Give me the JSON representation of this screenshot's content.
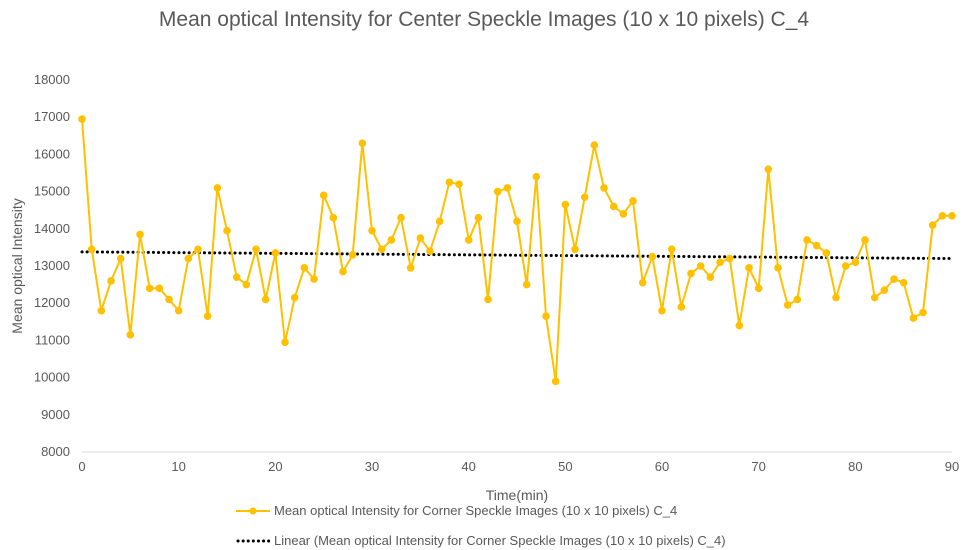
{
  "chart_data": {
    "type": "line",
    "title": "Mean optical Intensity for Center Speckle Images (10 x 10 pixels) C_4",
    "xlabel": "Time(min)",
    "ylabel": "Mean optical Intensity",
    "xlim": [
      0,
      90
    ],
    "ylim": [
      8000,
      18000
    ],
    "xticks": [
      0,
      10,
      20,
      30,
      40,
      50,
      60,
      70,
      80,
      90
    ],
    "yticks": [
      8000,
      9000,
      10000,
      11000,
      12000,
      13000,
      14000,
      15000,
      16000,
      17000,
      18000
    ],
    "grid": false,
    "legend_position": "bottom",
    "series": [
      {
        "name": "Mean optical Intensity for Corner Speckle Images (10 x 10 pixels) C_4",
        "color": "#FFC000",
        "marker": "circle",
        "x": [
          0,
          1,
          2,
          3,
          4,
          5,
          6,
          7,
          8,
          9,
          10,
          11,
          12,
          13,
          14,
          15,
          16,
          17,
          18,
          19,
          20,
          21,
          22,
          23,
          24,
          25,
          26,
          27,
          28,
          29,
          30,
          31,
          32,
          33,
          34,
          35,
          36,
          37,
          38,
          39,
          40,
          41,
          42,
          43,
          44,
          45,
          46,
          47,
          48,
          49,
          50,
          51,
          52,
          53,
          54,
          55,
          56,
          57,
          58,
          59,
          60,
          61,
          62,
          63,
          64,
          65,
          66,
          67,
          68,
          69,
          70,
          71,
          72,
          73,
          74,
          75,
          76,
          77,
          78,
          79,
          80,
          81,
          82,
          83,
          84,
          85,
          86,
          87,
          88,
          89,
          90
        ],
        "y": [
          16950,
          13450,
          11800,
          12600,
          13200,
          11150,
          13850,
          12400,
          12400,
          12100,
          11800,
          13200,
          13450,
          11650,
          15100,
          13950,
          12700,
          12500,
          13450,
          12100,
          13350,
          10950,
          12150,
          12950,
          12650,
          14900,
          14300,
          12850,
          13300,
          16300,
          13950,
          13450,
          13700,
          14300,
          12950,
          13750,
          13400,
          14200,
          15250,
          15200,
          13700,
          14300,
          12100,
          15000,
          15100,
          14200,
          12500,
          15400,
          11650,
          9900,
          14650,
          13450,
          14850,
          16250,
          15100,
          14600,
          14400,
          14750,
          12550,
          13250,
          11800,
          13450,
          11900,
          12800,
          13000,
          12700,
          13100,
          13200,
          11400,
          12950,
          12400,
          15600,
          12950,
          11950,
          12100,
          13700,
          13550,
          13350,
          12150,
          13000,
          13100,
          13700,
          12150,
          12350,
          12650,
          12550,
          11600,
          11750,
          14100,
          14350,
          14350
        ]
      },
      {
        "name": "Linear (Mean optical Intensity for Corner Speckle Images (10 x 10 pixels) C_4)",
        "color": "#000000",
        "style": "dotted",
        "x": [
          0,
          90
        ],
        "y": [
          13380,
          13200
        ]
      }
    ]
  }
}
